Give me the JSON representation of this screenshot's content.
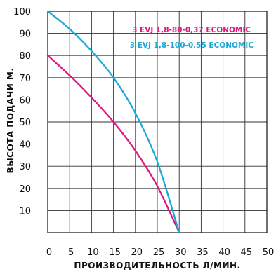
{
  "chart_data": {
    "type": "line",
    "title": "",
    "xlabel": "ПРОИЗВОДИТЕЛЬНОСТЬ Л/МИН.",
    "ylabel": "ВЫСОТА ПОДАЧИ М.",
    "xlim": [
      0,
      50
    ],
    "ylim": [
      0,
      100
    ],
    "x_ticks": [
      0,
      5,
      10,
      15,
      20,
      25,
      30,
      35,
      40,
      45,
      50
    ],
    "y_ticks": [
      10,
      20,
      30,
      40,
      50,
      60,
      70,
      80,
      90,
      100
    ],
    "x_tick_labels": [
      "0",
      "5",
      "10",
      "15",
      "20",
      "25",
      "30",
      "35",
      "40",
      "45",
      "50"
    ],
    "y_tick_labels": [
      "10",
      "20",
      "30",
      "40",
      "50",
      "60",
      "70",
      "80",
      "90",
      "100"
    ],
    "grid": true,
    "legend_position": "top-right",
    "series": [
      {
        "name": "3 EVJ 1,8-80-0,37 ECONOMIC",
        "color": "#e3157f",
        "x": [
          0,
          5,
          10,
          15,
          20,
          25,
          30
        ],
        "y": [
          80,
          71,
          61,
          50,
          37,
          21,
          0
        ]
      },
      {
        "name": "3 EVJ 1,8-100-0.55 ECONOMIC",
        "color": "#1aa9d6",
        "x": [
          0,
          5,
          10,
          15,
          20,
          25,
          30
        ],
        "y": [
          100,
          92,
          82,
          70,
          54,
          32,
          0
        ]
      }
    ]
  }
}
